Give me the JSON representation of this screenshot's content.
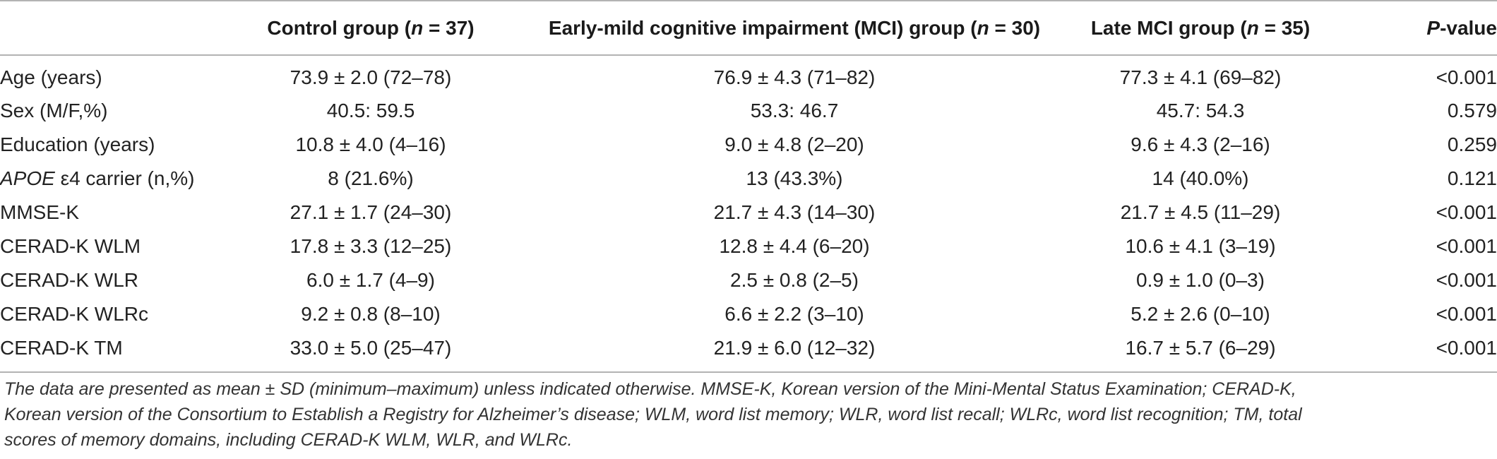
{
  "table": {
    "headers": [
      {
        "prefix": "",
        "italic": "",
        "suffix": ""
      },
      {
        "prefix": "Control group (",
        "italic": "n",
        "suffix": " = 37)"
      },
      {
        "prefix": "Early-mild cognitive impairment (MCI) group (",
        "italic": "n",
        "suffix": " = 30)"
      },
      {
        "prefix": "Late MCI group (",
        "italic": "n",
        "suffix": " = 35)"
      },
      {
        "prefix": "",
        "italic": "P",
        "suffix": "-value"
      }
    ],
    "rows": [
      {
        "label_italic": "",
        "label": "Age (years)",
        "control": "73.9 ± 2.0 (72–78)",
        "early": "76.9 ± 4.3 (71–82)",
        "late": "77.3 ± 4.1 (69–82)",
        "p": "<0.001"
      },
      {
        "label_italic": "",
        "label": "Sex (M/F,%)",
        "control": "40.5: 59.5",
        "early": "53.3: 46.7",
        "late": "45.7: 54.3",
        "p": "0.579"
      },
      {
        "label_italic": "",
        "label": "Education (years)",
        "control": "10.8 ± 4.0 (4–16)",
        "early": "9.0 ± 4.8 (2–20)",
        "late": "9.6 ± 4.3 (2–16)",
        "p": "0.259"
      },
      {
        "label_italic": "APOE",
        "label": " ε4 carrier (n,%)",
        "control": "8 (21.6%)",
        "early": "13 (43.3%)",
        "late": "14 (40.0%)",
        "p": "0.121"
      },
      {
        "label_italic": "",
        "label": "MMSE-K",
        "control": "27.1 ± 1.7 (24–30)",
        "early": "21.7 ± 4.3 (14–30)",
        "late": "21.7 ± 4.5 (11–29)",
        "p": "<0.001"
      },
      {
        "label_italic": "",
        "label": "CERAD-K WLM",
        "control": "17.8 ± 3.3 (12–25)",
        "early": "12.8 ± 4.4 (6–20)",
        "late": "10.6 ± 4.1 (3–19)",
        "p": "<0.001"
      },
      {
        "label_italic": "",
        "label": "CERAD-K WLR",
        "control": "6.0 ± 1.7 (4–9)",
        "early": "2.5 ± 0.8 (2–5)",
        "late": "0.9 ± 1.0 (0–3)",
        "p": "<0.001"
      },
      {
        "label_italic": "",
        "label": "CERAD-K WLRc",
        "control": "9.2 ± 0.8 (8–10)",
        "early": "6.6 ± 2.2 (3–10)",
        "late": "5.2 ± 2.6 (0–10)",
        "p": "<0.001"
      },
      {
        "label_italic": "",
        "label": "CERAD-K TM",
        "control": "33.0 ± 5.0 (25–47)",
        "early": "21.9 ± 6.0 (12–32)",
        "late": "16.7 ± 5.7 (6–29)",
        "p": "<0.001"
      }
    ]
  },
  "footnote": {
    "lines": [
      "The data are presented as mean ± SD (minimum–maximum) unless indicated otherwise. MMSE-K, Korean version of the Mini-Mental Status Examination; CERAD-K,",
      "Korean version of the Consortium to Establish a Registry for Alzheimer’s disease; WLM, word list memory; WLR, word list recall; WLRc, word list recognition; TM, total",
      "scores of memory domains, including CERAD-K WLM, WLR, and WLRc."
    ]
  }
}
